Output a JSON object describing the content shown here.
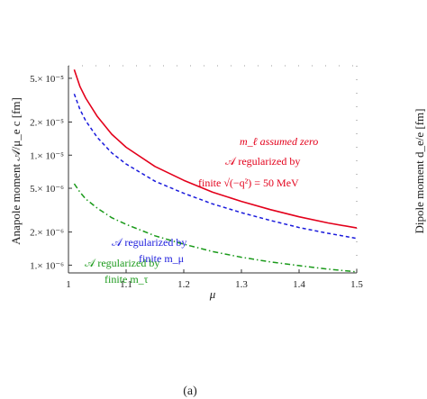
{
  "chart_data": {
    "type": "line",
    "xlabel": "μ",
    "ylabel": "Anapole moment  𝒜/μ_e c [fm]",
    "right_ylabel": "Dipole moment  d_e/e [fm]",
    "xlim": [
      1.0,
      1.5
    ],
    "ylim": [
      8.5e-07,
      6.5e-05
    ],
    "y_scale": "log",
    "grid": false,
    "x_ticks": [
      {
        "value": 1.0,
        "label": "1"
      },
      {
        "value": 1.1,
        "label": "1.1"
      },
      {
        "value": 1.2,
        "label": "1.2"
      },
      {
        "value": 1.3,
        "label": "1.3"
      },
      {
        "value": 1.4,
        "label": "1.4"
      },
      {
        "value": 1.5,
        "label": "1.5"
      }
    ],
    "y_ticks": [
      {
        "value": 5e-05,
        "label": "5.× 10⁻⁵"
      },
      {
        "value": 2e-05,
        "label": "2.× 10⁻⁵"
      },
      {
        "value": 1e-05,
        "label": "1.× 10⁻⁵"
      },
      {
        "value": 5e-06,
        "label": "5.× 10⁻⁶"
      },
      {
        "value": 2e-06,
        "label": "2.× 10⁻⁶"
      },
      {
        "value": 1e-06,
        "label": "1.× 10⁻⁶"
      }
    ],
    "series": [
      {
        "color": "#e3001b",
        "style": "solid",
        "x": [
          1.01,
          1.02,
          1.03,
          1.05,
          1.075,
          1.1,
          1.15,
          1.2,
          1.25,
          1.3,
          1.35,
          1.4,
          1.45,
          1.5
        ],
        "y": [
          6e-05,
          4.2e-05,
          3.3e-05,
          2.25e-05,
          1.55e-05,
          1.18e-05,
          7.9e-06,
          5.9e-06,
          4.6e-06,
          3.8e-06,
          3.2e-06,
          2.75e-06,
          2.42e-06,
          2.18e-06
        ]
      },
      {
        "color": "#1a1adc",
        "style": "dashed",
        "x": [
          1.01,
          1.02,
          1.03,
          1.05,
          1.075,
          1.1,
          1.15,
          1.2,
          1.25,
          1.3,
          1.35,
          1.4,
          1.45,
          1.5
        ],
        "y": [
          3.6e-05,
          2.6e-05,
          2.05e-05,
          1.45e-05,
          1.05e-05,
          8.3e-06,
          5.8e-06,
          4.5e-06,
          3.6e-06,
          3e-06,
          2.55e-06,
          2.2e-06,
          1.95e-06,
          1.75e-06
        ]
      },
      {
        "color": "#1a9a1a",
        "style": "dashdot",
        "x": [
          1.01,
          1.02,
          1.03,
          1.05,
          1.075,
          1.1,
          1.15,
          1.2,
          1.25,
          1.3,
          1.35,
          1.4,
          1.45,
          1.5
        ],
        "y": [
          5.5e-06,
          4.6e-06,
          4e-06,
          3.3e-06,
          2.7e-06,
          2.35e-06,
          1.85e-06,
          1.55e-06,
          1.33e-06,
          1.18e-06,
          1.07e-06,
          9.9e-07,
          9.2e-07,
          8.7e-07
        ]
      }
    ],
    "annotations": {
      "red_line1": "m_ℓ assumed zero",
      "red_line2": "𝒜 regularized by",
      "red_line3": "finite √(−q²) = 50 MeV",
      "blue_line1": "𝒜 regularized by",
      "blue_line2": "finite m_μ",
      "green_line1": "𝒜 regularized by",
      "green_line2": "finite m_τ"
    },
    "caption": "(a)"
  }
}
